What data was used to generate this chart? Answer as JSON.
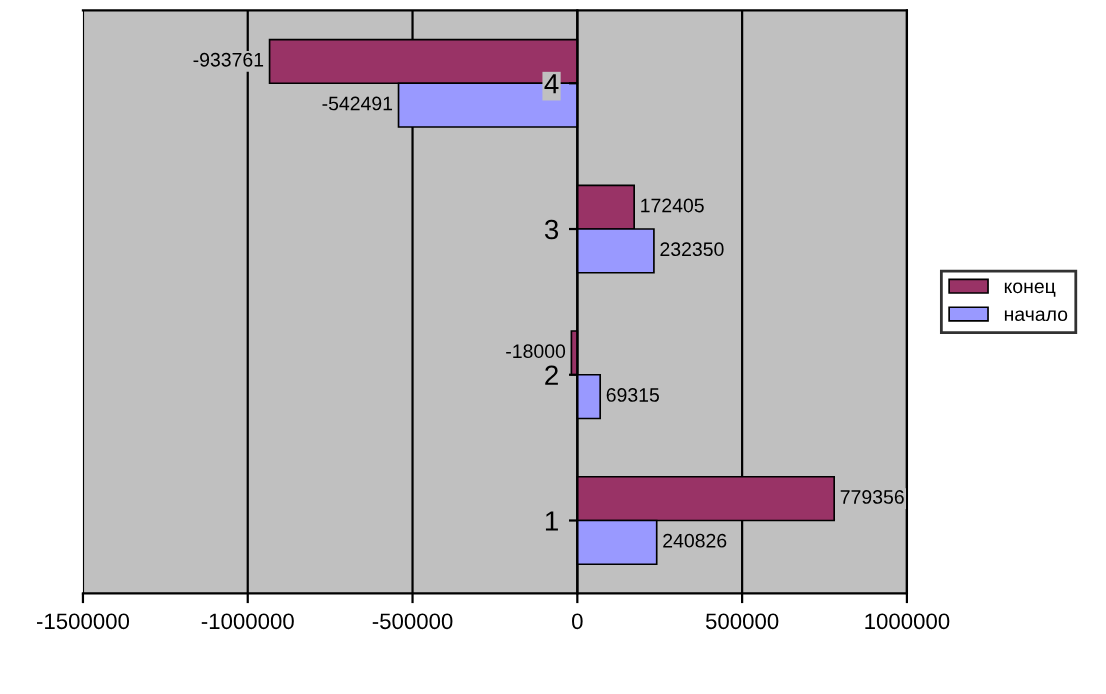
{
  "chart_data": {
    "type": "bar",
    "orientation": "horizontal",
    "categories": [
      "4",
      "3",
      "2",
      "1"
    ],
    "series": [
      {
        "name": "конец",
        "color": "#993366",
        "values": [
          -933761,
          172405,
          -18000,
          779356
        ]
      },
      {
        "name": "начало",
        "color": "#9999ff",
        "values": [
          -542491,
          232350,
          69315,
          240826
        ]
      }
    ],
    "xlim": [
      -1500000,
      1000000
    ],
    "xticks": [
      -1500000,
      -1000000,
      -500000,
      0,
      500000,
      1000000
    ],
    "grid": "x",
    "legend": "right",
    "data_labels": true
  }
}
